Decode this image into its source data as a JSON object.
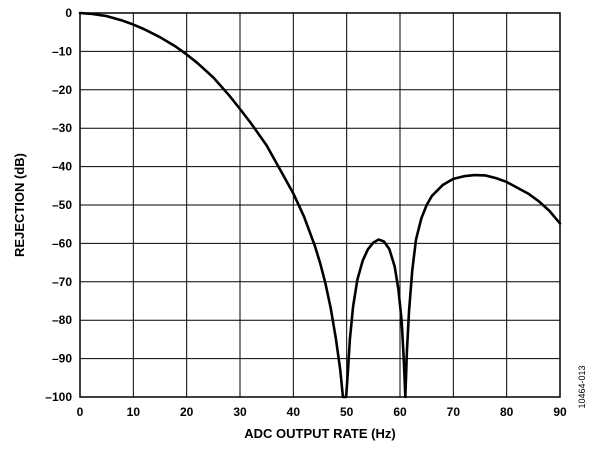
{
  "chart_data": {
    "type": "line",
    "title": "",
    "xlabel": "ADC OUTPUT RATE (Hz)",
    "ylabel": "REJECTION (dB)",
    "xlim": [
      0,
      90
    ],
    "ylim": [
      -100,
      0
    ],
    "x_ticks": [
      "0",
      "10",
      "20",
      "30",
      "40",
      "50",
      "60",
      "70",
      "80",
      "90"
    ],
    "y_ticks": [
      "0",
      "–10",
      "–20",
      "–30",
      "–40",
      "–50",
      "–60",
      "–70",
      "–80",
      "–90",
      "–100"
    ],
    "grid": true,
    "legend": "none",
    "line_color": "#000000",
    "series": [
      {
        "x": [
          0,
          2,
          5,
          8,
          10,
          12,
          15,
          18,
          20,
          22,
          25,
          28,
          30,
          32,
          35,
          38,
          40,
          42,
          44,
          45,
          46,
          47,
          48,
          48.8,
          49.3,
          49.6,
          49.9,
          50.2,
          50.6,
          51.2,
          52,
          53,
          54,
          55,
          56,
          57,
          58,
          59,
          59.7,
          60.3,
          60.7,
          61.0,
          61.3,
          61.7,
          62.3,
          63,
          64,
          65,
          66,
          68,
          70,
          72,
          74,
          76,
          78,
          80,
          82,
          84,
          86,
          88,
          90
        ],
        "y": [
          0,
          -0.2,
          -0.8,
          -2.0,
          -3.0,
          -4.2,
          -6.3,
          -8.8,
          -10.8,
          -13.0,
          -16.8,
          -21.5,
          -25.0,
          -28.6,
          -34.5,
          -42.0,
          -47.0,
          -53.0,
          -60.5,
          -65.0,
          -70.3,
          -76.8,
          -85.0,
          -93.0,
          -100.0,
          -100.0,
          -100.0,
          -94.0,
          -85.0,
          -76.5,
          -69.5,
          -64.5,
          -61.5,
          -59.8,
          -59.0,
          -59.5,
          -61.5,
          -66.0,
          -72.0,
          -80.0,
          -90.0,
          -100.0,
          -88.0,
          -77.5,
          -67.0,
          -59.0,
          -53.5,
          -50.0,
          -47.6,
          -44.8,
          -43.2,
          -42.5,
          -42.2,
          -42.3,
          -43.0,
          -44.0,
          -45.5,
          -47.0,
          -49.0,
          -51.5,
          -54.8
        ]
      }
    ],
    "side_label": "10464-013"
  }
}
